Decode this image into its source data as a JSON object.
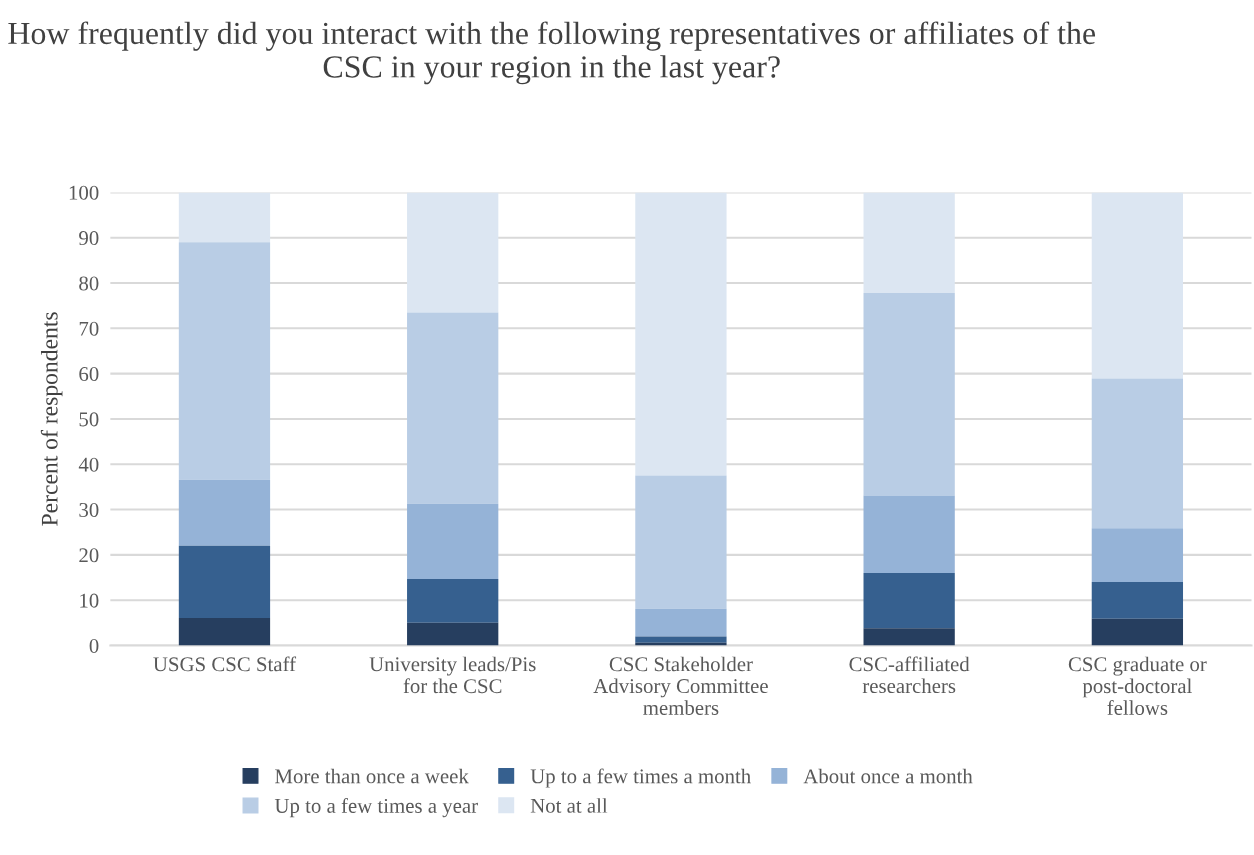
{
  "chart_data": {
    "type": "bar",
    "stacked": true,
    "title": "How frequently did you interact with the following representatives or affiliates of the CSC in your region in the last year?",
    "ylabel": "Percent of respondents",
    "categories": [
      "USGS CSC Staff",
      "University leads/Pis\nfor the CSC",
      "CSC Stakeholder\nAdvisory Committee\nmembers",
      "CSC-affiliated\nresearchers",
      "CSC graduate or\npost-doctoral\nfellows"
    ],
    "series": [
      {
        "name": "More than once a week",
        "color": "#263e5f",
        "values": [
          6.1,
          5.0,
          0.6,
          3.8,
          5.9
        ]
      },
      {
        "name": "Up to a few times a month",
        "color": "#36608f",
        "values": [
          15.9,
          9.7,
          1.4,
          12.2,
          8.1
        ]
      },
      {
        "name": "About once a month",
        "color": "#95b3d7",
        "values": [
          14.6,
          16.6,
          6.1,
          17.1,
          11.9
        ]
      },
      {
        "name": "Up to a few times a year",
        "color": "#b9cde5",
        "values": [
          52.4,
          42.2,
          29.4,
          44.7,
          33.0
        ]
      },
      {
        "name": "Not at all",
        "color": "#dce6f2",
        "values": [
          11.0,
          26.5,
          62.5,
          22.2,
          41.1
        ]
      }
    ],
    "ylim": [
      0,
      100
    ],
    "yticks": [
      0,
      10,
      20,
      30,
      40,
      50,
      60,
      70,
      80,
      90,
      100
    ],
    "grid": "y",
    "legend": "bottom"
  }
}
